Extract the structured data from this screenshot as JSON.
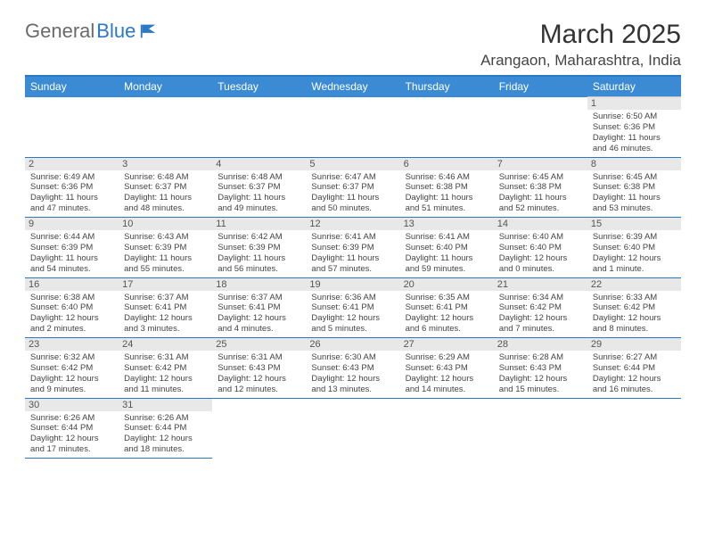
{
  "logo": {
    "gray": "General",
    "blue": "Blue"
  },
  "title": "March 2025",
  "location": "Arangaon, Maharashtra, India",
  "colors": {
    "header_bg": "#3b8bd4",
    "accent": "#2b78c4",
    "daynum_bg": "#e8e8e8",
    "text": "#444444"
  },
  "day_headers": [
    "Sunday",
    "Monday",
    "Tuesday",
    "Wednesday",
    "Thursday",
    "Friday",
    "Saturday"
  ],
  "weeks": [
    [
      null,
      null,
      null,
      null,
      null,
      null,
      {
        "n": "1",
        "sr": "6:50 AM",
        "ss": "6:36 PM",
        "dl": "11 hours and 46 minutes."
      }
    ],
    [
      {
        "n": "2",
        "sr": "6:49 AM",
        "ss": "6:36 PM",
        "dl": "11 hours and 47 minutes."
      },
      {
        "n": "3",
        "sr": "6:48 AM",
        "ss": "6:37 PM",
        "dl": "11 hours and 48 minutes."
      },
      {
        "n": "4",
        "sr": "6:48 AM",
        "ss": "6:37 PM",
        "dl": "11 hours and 49 minutes."
      },
      {
        "n": "5",
        "sr": "6:47 AM",
        "ss": "6:37 PM",
        "dl": "11 hours and 50 minutes."
      },
      {
        "n": "6",
        "sr": "6:46 AM",
        "ss": "6:38 PM",
        "dl": "11 hours and 51 minutes."
      },
      {
        "n": "7",
        "sr": "6:45 AM",
        "ss": "6:38 PM",
        "dl": "11 hours and 52 minutes."
      },
      {
        "n": "8",
        "sr": "6:45 AM",
        "ss": "6:38 PM",
        "dl": "11 hours and 53 minutes."
      }
    ],
    [
      {
        "n": "9",
        "sr": "6:44 AM",
        "ss": "6:39 PM",
        "dl": "11 hours and 54 minutes."
      },
      {
        "n": "10",
        "sr": "6:43 AM",
        "ss": "6:39 PM",
        "dl": "11 hours and 55 minutes."
      },
      {
        "n": "11",
        "sr": "6:42 AM",
        "ss": "6:39 PM",
        "dl": "11 hours and 56 minutes."
      },
      {
        "n": "12",
        "sr": "6:41 AM",
        "ss": "6:39 PM",
        "dl": "11 hours and 57 minutes."
      },
      {
        "n": "13",
        "sr": "6:41 AM",
        "ss": "6:40 PM",
        "dl": "11 hours and 59 minutes."
      },
      {
        "n": "14",
        "sr": "6:40 AM",
        "ss": "6:40 PM",
        "dl": "12 hours and 0 minutes."
      },
      {
        "n": "15",
        "sr": "6:39 AM",
        "ss": "6:40 PM",
        "dl": "12 hours and 1 minute."
      }
    ],
    [
      {
        "n": "16",
        "sr": "6:38 AM",
        "ss": "6:40 PM",
        "dl": "12 hours and 2 minutes."
      },
      {
        "n": "17",
        "sr": "6:37 AM",
        "ss": "6:41 PM",
        "dl": "12 hours and 3 minutes."
      },
      {
        "n": "18",
        "sr": "6:37 AM",
        "ss": "6:41 PM",
        "dl": "12 hours and 4 minutes."
      },
      {
        "n": "19",
        "sr": "6:36 AM",
        "ss": "6:41 PM",
        "dl": "12 hours and 5 minutes."
      },
      {
        "n": "20",
        "sr": "6:35 AM",
        "ss": "6:41 PM",
        "dl": "12 hours and 6 minutes."
      },
      {
        "n": "21",
        "sr": "6:34 AM",
        "ss": "6:42 PM",
        "dl": "12 hours and 7 minutes."
      },
      {
        "n": "22",
        "sr": "6:33 AM",
        "ss": "6:42 PM",
        "dl": "12 hours and 8 minutes."
      }
    ],
    [
      {
        "n": "23",
        "sr": "6:32 AM",
        "ss": "6:42 PM",
        "dl": "12 hours and 9 minutes."
      },
      {
        "n": "24",
        "sr": "6:31 AM",
        "ss": "6:42 PM",
        "dl": "12 hours and 11 minutes."
      },
      {
        "n": "25",
        "sr": "6:31 AM",
        "ss": "6:43 PM",
        "dl": "12 hours and 12 minutes."
      },
      {
        "n": "26",
        "sr": "6:30 AM",
        "ss": "6:43 PM",
        "dl": "12 hours and 13 minutes."
      },
      {
        "n": "27",
        "sr": "6:29 AM",
        "ss": "6:43 PM",
        "dl": "12 hours and 14 minutes."
      },
      {
        "n": "28",
        "sr": "6:28 AM",
        "ss": "6:43 PM",
        "dl": "12 hours and 15 minutes."
      },
      {
        "n": "29",
        "sr": "6:27 AM",
        "ss": "6:44 PM",
        "dl": "12 hours and 16 minutes."
      }
    ],
    [
      {
        "n": "30",
        "sr": "6:26 AM",
        "ss": "6:44 PM",
        "dl": "12 hours and 17 minutes."
      },
      {
        "n": "31",
        "sr": "6:26 AM",
        "ss": "6:44 PM",
        "dl": "12 hours and 18 minutes."
      },
      null,
      null,
      null,
      null,
      null
    ]
  ],
  "labels": {
    "sunrise": "Sunrise:",
    "sunset": "Sunset:",
    "daylight": "Daylight:"
  }
}
